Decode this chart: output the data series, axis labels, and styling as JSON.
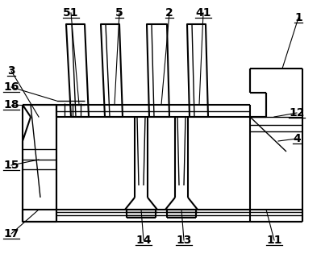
{
  "bg_color": "#ffffff",
  "line_color": "#000000",
  "fig_width": 3.98,
  "fig_height": 3.25,
  "dpi": 100
}
